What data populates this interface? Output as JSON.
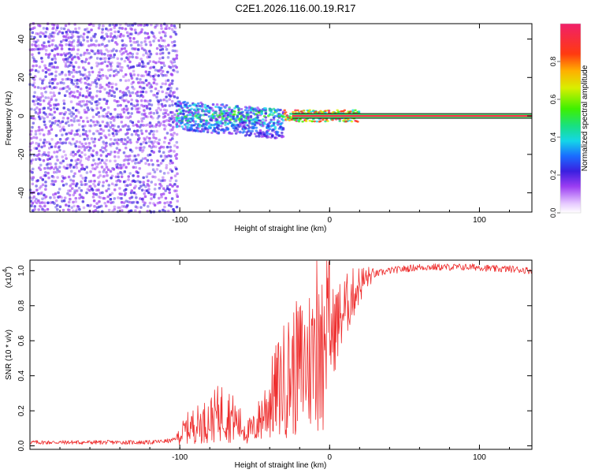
{
  "figure": {
    "title": "C2E1.2026.116.00.19.R17"
  },
  "colors": {
    "snr_line": "#ee2d2d",
    "carrier_red": "#ff2a4a",
    "carrier_edge": "#000000",
    "axis": "#000000"
  },
  "chart_data": [
    {
      "type": "heatmap",
      "name": "spectrogram",
      "title": "C2E1.2026.116.00.19.R17",
      "xlabel": "Height of straight line (km)",
      "ylabel": "Frequency (Hz)",
      "xlim": [
        -200,
        135
      ],
      "ylim": [
        -50,
        48
      ],
      "x_ticks": [
        -100,
        0,
        100
      ],
      "x_tick_labels": [
        "-100",
        "0",
        "100"
      ],
      "y_ticks": [
        -40,
        -20,
        0,
        20,
        40
      ],
      "y_tick_labels": [
        "-40",
        "-20",
        "0",
        "20",
        "40"
      ],
      "colorbar": {
        "label": "Normalized spectral amplitude",
        "range": [
          0,
          1
        ],
        "ticks": [
          0,
          0.2,
          0.4,
          0.6,
          0.8
        ],
        "tick_labels": [
          "0.0",
          "0.2",
          "0.4",
          "0.6",
          "0.8"
        ]
      },
      "regions": [
        {
          "name": "diffuse-noise",
          "x": [
            -200,
            -102
          ],
          "freq_spread": [
            -50,
            48
          ],
          "amplitude": [
            0.05,
            0.2
          ]
        },
        {
          "name": "multipath-band",
          "x": [
            -102,
            -30
          ],
          "freq_spread": [
            -12,
            8
          ],
          "amplitude": [
            0.1,
            0.55
          ]
        },
        {
          "name": "converging-band",
          "x": [
            -30,
            20
          ],
          "freq_spread": [
            -3,
            3
          ],
          "amplitude": [
            0.3,
            0.9
          ]
        },
        {
          "name": "clean-carrier",
          "x": [
            -25,
            135
          ],
          "freq": 0,
          "amplitude": 0.95
        }
      ]
    },
    {
      "type": "line",
      "name": "snr",
      "xlabel": "Height of straight line (km)",
      "ylabel": "SNR (10 * v/v)",
      "y_multiplier": "(x10",
      "y_multiplier_exp": "4",
      "y_multiplier_close": ")",
      "xlim": [
        -200,
        135
      ],
      "ylim": [
        -0.02,
        1.06
      ],
      "x_ticks": [
        -100,
        0,
        100
      ],
      "x_tick_labels": [
        "-100",
        "0",
        "100"
      ],
      "y_ticks": [
        0,
        0.2,
        0.4,
        0.6,
        0.8,
        1.0
      ],
      "y_tick_labels": [
        "0.0",
        "0.2",
        "0.4",
        "0.6",
        "0.8",
        "1.0"
      ],
      "series": [
        {
          "name": "SNR",
          "x": [
            -200,
            -180,
            -160,
            -140,
            -120,
            -105,
            -100,
            -95,
            -90,
            -85,
            -80,
            -75,
            -70,
            -65,
            -60,
            -55,
            -50,
            -45,
            -40,
            -35,
            -30,
            -25,
            -20,
            -15,
            -10,
            -5,
            0,
            5,
            10,
            15,
            20,
            25,
            30,
            40,
            50,
            60,
            70,
            80,
            90,
            100,
            110,
            120,
            135
          ],
          "values": [
            0.02,
            0.02,
            0.02,
            0.02,
            0.02,
            0.03,
            0.06,
            0.1,
            0.12,
            0.13,
            0.15,
            0.18,
            0.2,
            0.16,
            0.12,
            0.08,
            0.1,
            0.18,
            0.25,
            0.32,
            0.38,
            0.42,
            0.45,
            0.48,
            0.52,
            0.56,
            0.62,
            0.7,
            0.78,
            0.86,
            0.92,
            0.96,
            0.98,
            1.0,
            1.01,
            1.02,
            1.02,
            1.02,
            1.02,
            1.02,
            1.01,
            1.01,
            1.0
          ]
        }
      ]
    }
  ]
}
